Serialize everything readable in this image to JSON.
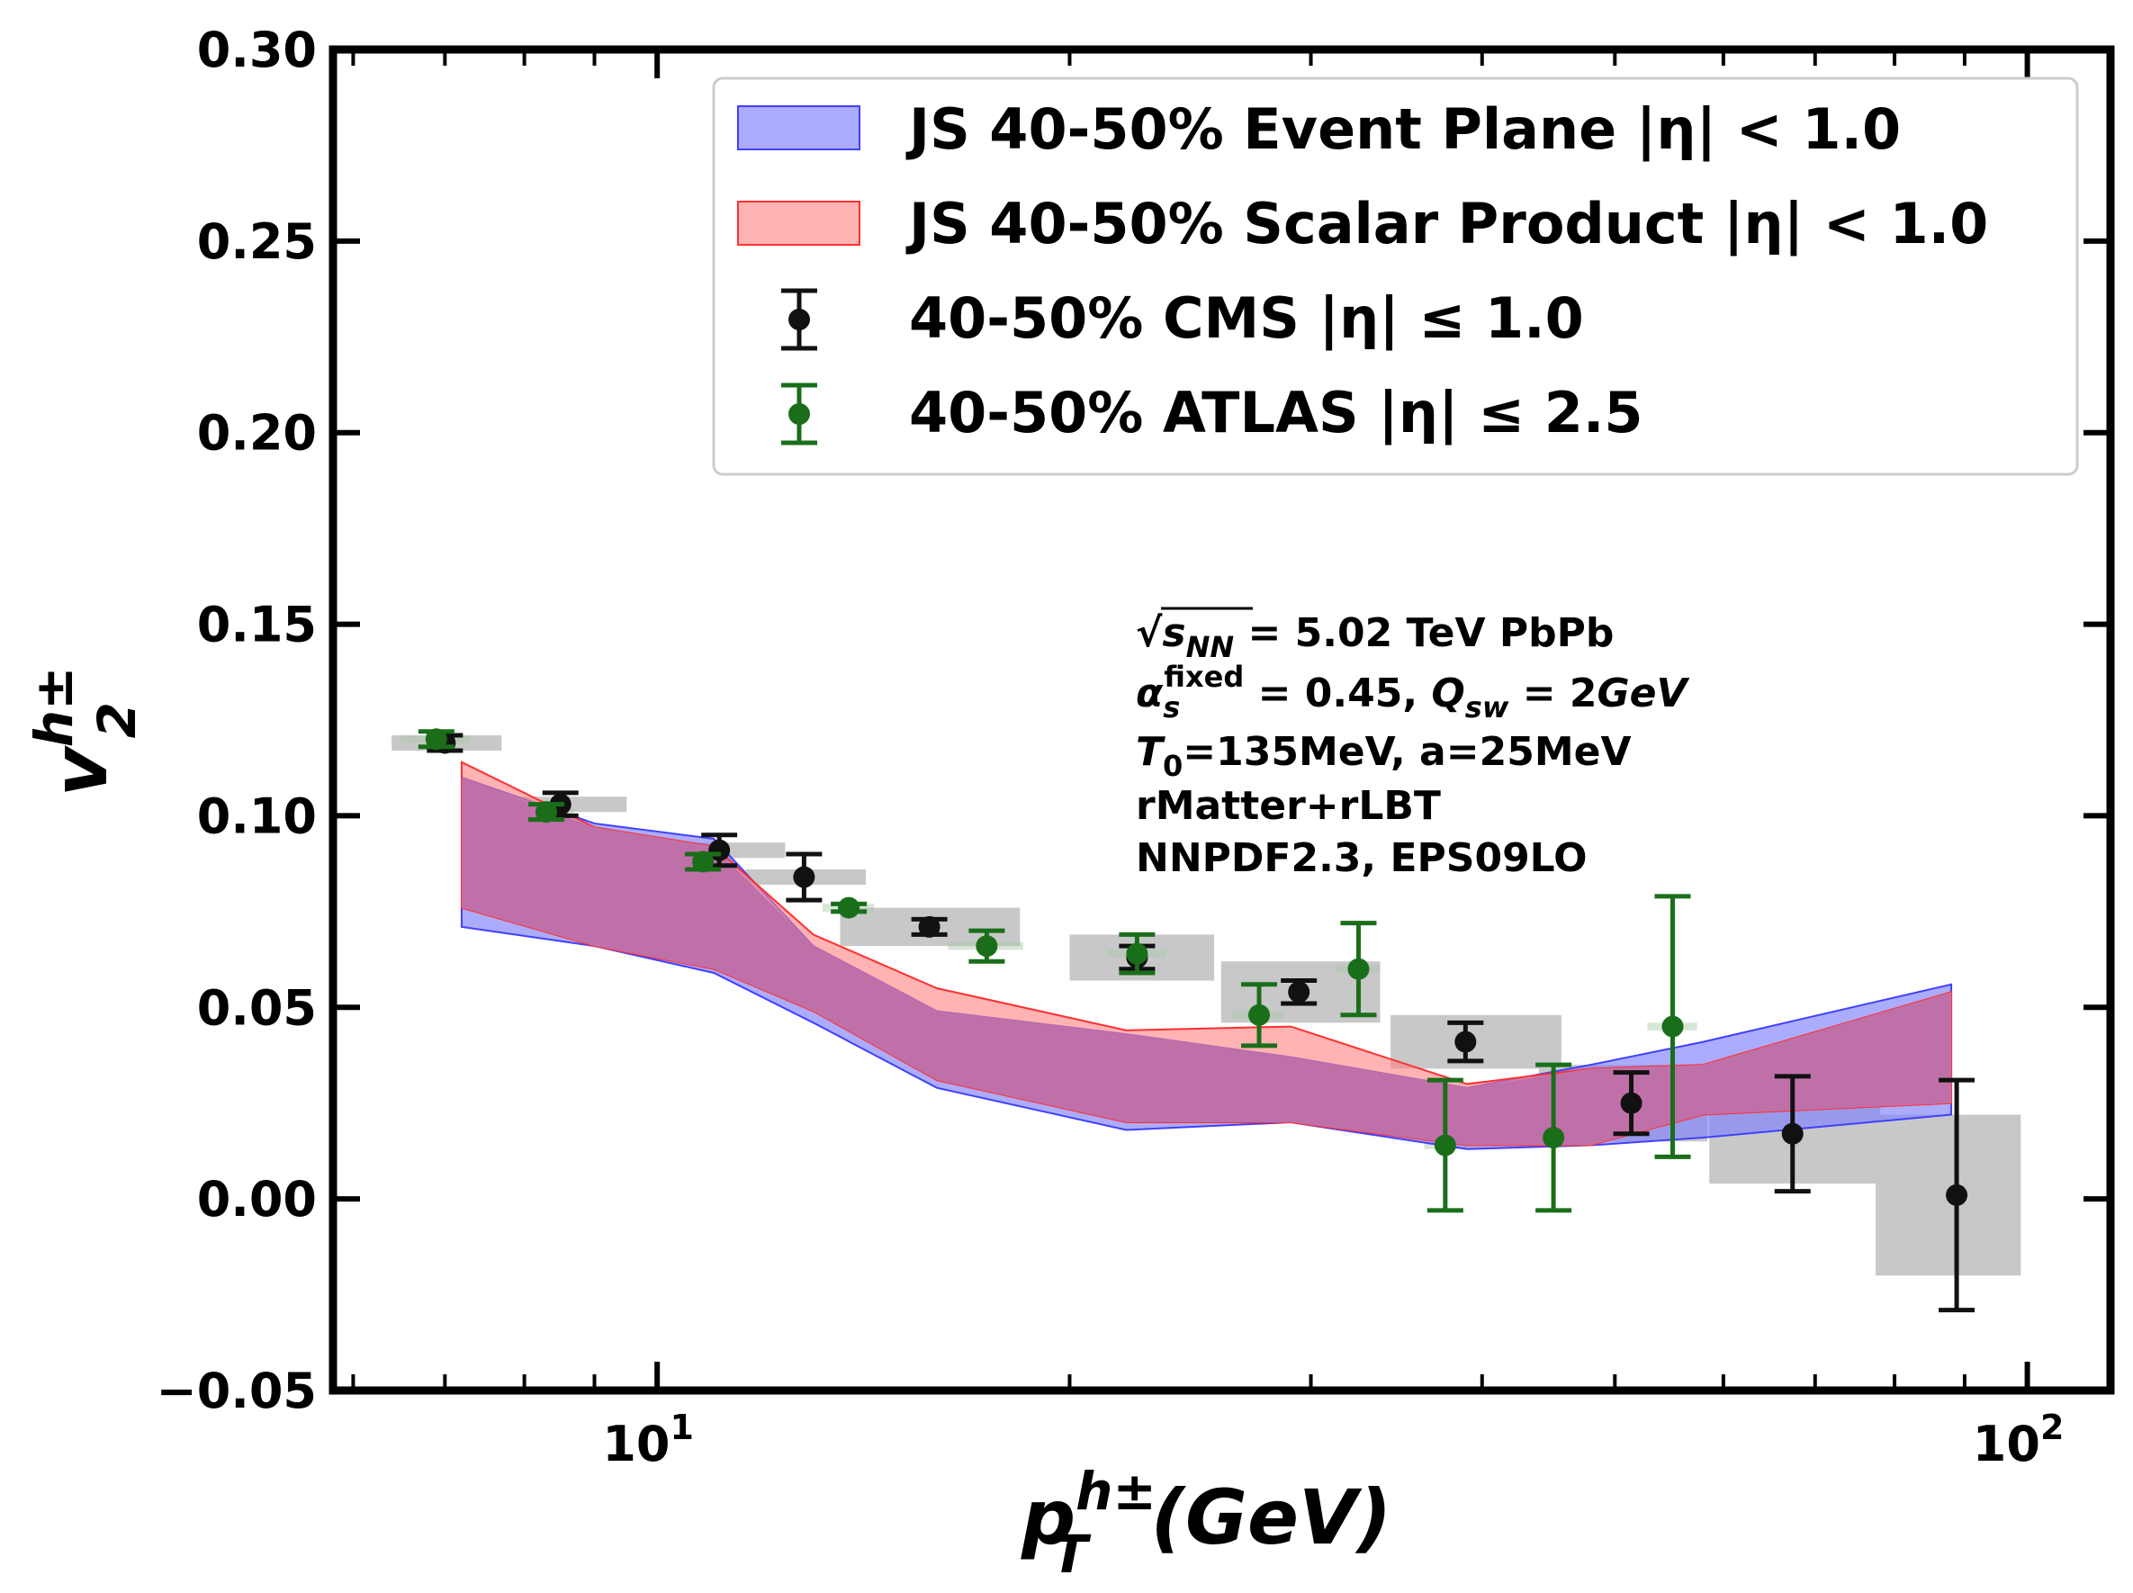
{
  "chart_data": {
    "type": "line",
    "title": "",
    "xlabel": {
      "base": "p",
      "sub": "T",
      "sup": "h±",
      "unit": "(GeV)"
    },
    "ylabel": {
      "base": "v",
      "sub": "2",
      "sup": "h±"
    },
    "xscale": "log",
    "xlim": [
      5.8,
      115
    ],
    "ylim": [
      -0.05,
      0.3
    ],
    "y_ticks": [
      -0.05,
      0.0,
      0.05,
      0.1,
      0.15,
      0.2,
      0.25,
      0.3
    ],
    "y_tick_labels": [
      "−0.05",
      "0.00",
      "0.05",
      "0.10",
      "0.15",
      "0.20",
      "0.25",
      "0.30"
    ],
    "x_major_ticks": [
      {
        "value": 10,
        "base": "10",
        "exp": "1"
      },
      {
        "value": 100,
        "base": "10",
        "exp": "2"
      }
    ],
    "x_minor_ticks": [
      6,
      7,
      8,
      9,
      20,
      30,
      40,
      50,
      60,
      70,
      80,
      90
    ],
    "legend_position": "top-right",
    "legend": {
      "event_plane": "JS 40-50% Event Plane |η| < 1.0",
      "scalar_product": "JS 40-50% Scalar Product |η| < 1.0",
      "cms": "40-50% CMS |η| ≤ 1.0",
      "atlas": "40-50% ATLAS |η| ≤ 2.5"
    },
    "colors": {
      "event_plane_fill": "#8080ff",
      "event_plane_edge": "#4040ff",
      "scalar_product_fill": "#ff8080",
      "scalar_product_edge": "#ff3030",
      "overlap_fill": "#c070a8",
      "cms": "#111111",
      "atlas": "#1a6e1a",
      "syst_box": "#c8c8c8"
    },
    "annotations": [
      "√s_NN = 5.02 TeV PbPb",
      "α_s^fixed = 0.45, Q_sw = 2GeV",
      "T_0=135MeV, a=25MeV",
      "rMatter+rLBT",
      "NNPDF2.3, EPS09LO"
    ],
    "bands": [
      {
        "name": "JS 40-50% Event Plane |η| < 1.0",
        "x": [
          7.2,
          9.0,
          11.0,
          13.0,
          16.0,
          22.0,
          29.0,
          39.0,
          48.0,
          58.0,
          88.0
        ],
        "upper": [
          0.11,
          0.098,
          0.094,
          0.066,
          0.049,
          0.043,
          0.037,
          0.029,
          0.035,
          0.041,
          0.056
        ],
        "lower": [
          0.071,
          0.066,
          0.059,
          0.046,
          0.029,
          0.018,
          0.02,
          0.013,
          0.014,
          0.016,
          0.022
        ]
      },
      {
        "name": "JS 40-50% Scalar Product |η| < 1.0",
        "x": [
          7.2,
          9.0,
          11.0,
          13.0,
          16.0,
          22.0,
          29.0,
          39.0,
          48.0,
          58.0,
          88.0
        ],
        "upper": [
          0.114,
          0.097,
          0.092,
          0.069,
          0.055,
          0.044,
          0.045,
          0.03,
          0.034,
          0.035,
          0.054
        ],
        "lower": [
          0.076,
          0.066,
          0.06,
          0.049,
          0.031,
          0.02,
          0.02,
          0.014,
          0.014,
          0.022,
          0.025
        ]
      }
    ],
    "series": [
      {
        "name": "40-50% CMS |η| ≤ 1.0",
        "x": [
          7.0,
          8.5,
          11.1,
          12.8,
          15.8,
          22.4,
          29.4,
          38.9,
          51.4,
          67.4,
          88.8
        ],
        "y": [
          0.119,
          0.103,
          0.091,
          0.084,
          0.071,
          0.063,
          0.054,
          0.041,
          0.025,
          0.017,
          0.001
        ],
        "err": [
          0.002,
          0.003,
          0.004,
          0.006,
          0.002,
          0.003,
          0.003,
          0.005,
          0.008,
          0.015,
          0.03
        ],
        "box_x0": [
          6.4,
          7.8,
          10.1,
          11.6,
          13.6,
          20.0,
          25.8,
          34.3,
          44.0,
          58.6,
          77.5
        ],
        "box_x1": [
          7.7,
          9.5,
          12.4,
          14.2,
          18.4,
          25.5,
          33.7,
          45.7,
          58.4,
          78.1,
          98.9
        ],
        "sys": [
          0.002,
          0.002,
          0.002,
          0.002,
          0.005,
          0.006,
          0.008,
          0.007,
          0.01,
          0.013,
          0.021
        ]
      },
      {
        "name": "40-50% ATLAS |η| ≤ 2.5",
        "x": [
          6.9,
          8.3,
          10.8,
          13.8,
          17.4,
          22.4,
          27.5,
          32.5,
          37.6,
          45.1,
          55.1
        ],
        "y": [
          0.12,
          0.101,
          0.088,
          0.076,
          0.066,
          0.064,
          0.048,
          0.06,
          0.014,
          0.016,
          0.045
        ],
        "err": [
          0.002,
          0.002,
          0.002,
          0.001,
          0.004,
          0.005,
          0.008,
          0.012,
          0.017,
          0.019,
          0.034
        ],
        "box_x0": [
          6.5,
          7.9,
          10.2,
          13.2,
          16.3,
          21.3,
          26.3,
          31.3,
          36.3,
          42.8,
          52.8
        ],
        "box_x1": [
          7.3,
          8.7,
          11.4,
          14.4,
          18.5,
          23.5,
          28.7,
          33.7,
          38.9,
          47.4,
          57.4
        ],
        "sys": [
          0.001,
          0.001,
          0.001,
          0.001,
          0.001,
          0.001,
          0.001,
          0.001,
          0.001,
          0.001,
          0.001
        ]
      }
    ]
  }
}
